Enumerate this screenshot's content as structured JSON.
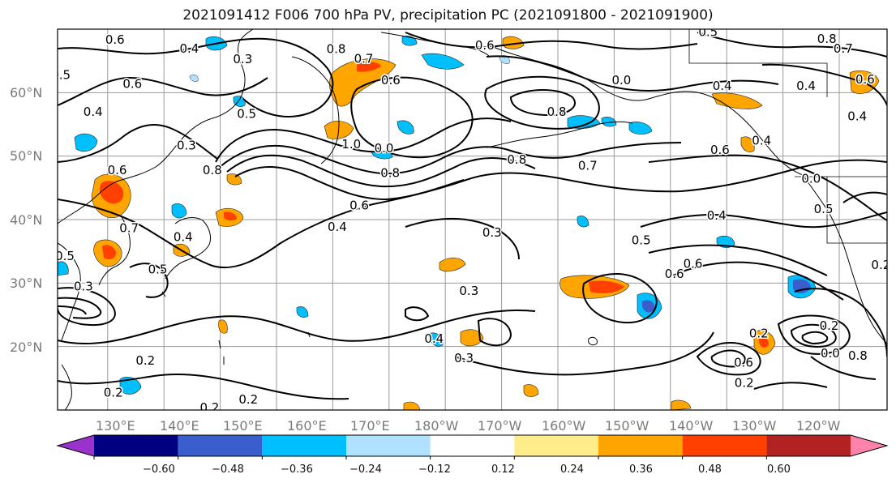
{
  "title": "2021091412 F006 700 hPa PV, precipitation PC (2021091800 - 2021091900)",
  "latitude_labels": [
    "60°N",
    "50°N",
    "40°N",
    "30°N",
    "20°N"
  ],
  "longitude_labels": [
    "130°E",
    "140°E",
    "150°E",
    "160°E",
    "170°E",
    "180°W",
    "170°W",
    "160°W",
    "150°W",
    "140°W",
    "130°W",
    "120°W"
  ],
  "contour_labels": [
    {
      "text": "0.6",
      "lon": 131.3,
      "lat": 68.3
    },
    {
      "text": "0.4",
      "lon": 144.5,
      "lat": 66.9
    },
    {
      "text": "0.3",
      "lon": 154.0,
      "lat": 65.2
    },
    {
      "text": "0.5",
      "lon": 121.7,
      "lat": 62.7
    },
    {
      "text": "0.6",
      "lon": 134.4,
      "lat": 61.3
    },
    {
      "text": "0.4",
      "lon": 127.4,
      "lat": 56.9
    },
    {
      "text": "0.5",
      "lon": 154.7,
      "lat": 56.6
    },
    {
      "text": "0.3",
      "lon": 144.0,
      "lat": 51.6
    },
    {
      "text": "0.8",
      "lon": 170.6,
      "lat": 66.8
    },
    {
      "text": "0.7",
      "lon": 175.5,
      "lat": 65.3
    },
    {
      "text": "0.6",
      "lon": 197.0,
      "lat": 67.4
    },
    {
      "text": "0.5",
      "lon": 236.7,
      "lat": 69.5
    },
    {
      "text": "0.8",
      "lon": 257.8,
      "lat": 68.4
    },
    {
      "text": "0.7",
      "lon": 260.7,
      "lat": 66.9
    },
    {
      "text": "0.6",
      "lon": 180.3,
      "lat": 61.9
    },
    {
      "text": "0.0",
      "lon": 221.3,
      "lat": 61.9
    },
    {
      "text": "0.4",
      "lon": 239.2,
      "lat": 61.0
    },
    {
      "text": "0.4",
      "lon": 254.1,
      "lat": 61.0
    },
    {
      "text": "0.6",
      "lon": 264.6,
      "lat": 62.0
    },
    {
      "text": "0.8",
      "lon": 209.8,
      "lat": 56.9
    },
    {
      "text": "0.4",
      "lon": 263.2,
      "lat": 56.2
    },
    {
      "text": "0.4",
      "lon": 246.2,
      "lat": 52.4
    },
    {
      "text": "1.0",
      "lon": 173.3,
      "lat": 51.8
    },
    {
      "text": "0.0",
      "lon": 179.1,
      "lat": 51.2
    },
    {
      "text": "0.6",
      "lon": 238.8,
      "lat": 50.9
    },
    {
      "text": "0.8",
      "lon": 202.7,
      "lat": 49.4
    },
    {
      "text": "0.7",
      "lon": 215.3,
      "lat": 48.4
    },
    {
      "text": "0.8",
      "lon": 148.6,
      "lat": 47.7
    },
    {
      "text": "0.8",
      "lon": 180.2,
      "lat": 47.3
    },
    {
      "text": "0.6",
      "lon": 131.7,
      "lat": 47.7
    },
    {
      "text": "0.0",
      "lon": 255.0,
      "lat": 46.4
    },
    {
      "text": "0.5",
      "lon": 257.2,
      "lat": 41.6
    },
    {
      "text": "0.6",
      "lon": 174.7,
      "lat": 42.2
    },
    {
      "text": "0.4",
      "lon": 170.8,
      "lat": 38.8
    },
    {
      "text": "0.4",
      "lon": 238.2,
      "lat": 40.6
    },
    {
      "text": "0.3",
      "lon": 198.3,
      "lat": 37.9
    },
    {
      "text": "0.7",
      "lon": 133.8,
      "lat": 38.6
    },
    {
      "text": "0.4",
      "lon": 143.4,
      "lat": 37.2
    },
    {
      "text": "0.5",
      "lon": 224.8,
      "lat": 36.7
    },
    {
      "text": "0.5",
      "lon": 122.4,
      "lat": 34.2
    },
    {
      "text": "0.5",
      "lon": 138.9,
      "lat": 32.1
    },
    {
      "text": "0.6",
      "lon": 230.7,
      "lat": 31.4
    },
    {
      "text": "0.6",
      "lon": 234.0,
      "lat": 33.0
    },
    {
      "text": "0.2",
      "lon": 267.4,
      "lat": 32.8
    },
    {
      "text": "0.3",
      "lon": 125.7,
      "lat": 29.4
    },
    {
      "text": "0.3",
      "lon": 194.2,
      "lat": 28.7
    },
    {
      "text": "0.4",
      "lon": 188.0,
      "lat": 21.2
    },
    {
      "text": "0.2",
      "lon": 245.7,
      "lat": 22.0
    },
    {
      "text": "0.2",
      "lon": 258.2,
      "lat": 23.2
    },
    {
      "text": "0.3",
      "lon": 193.3,
      "lat": 18.1
    },
    {
      "text": "0.0",
      "lon": 258.4,
      "lat": 18.9
    },
    {
      "text": "0.8",
      "lon": 263.3,
      "lat": 18.5
    },
    {
      "text": "0.6",
      "lon": 243.0,
      "lat": 17.4
    },
    {
      "text": "0.2",
      "lon": 136.7,
      "lat": 17.7
    },
    {
      "text": "0.2",
      "lon": 243.1,
      "lat": 14.2
    },
    {
      "text": "0.2",
      "lon": 131.0,
      "lat": 12.7
    },
    {
      "text": "0.2",
      "lon": 155.0,
      "lat": 11.6
    },
    {
      "text": "0.2",
      "lon": 148.1,
      "lat": 10.3
    }
  ],
  "colorbar": {
    "tick_labels": [
      "−0.60",
      "−0.48",
      "−0.36",
      "−0.24",
      "−0.12",
      "0.12",
      "0.24",
      "0.36",
      "0.48",
      "0.60"
    ],
    "colors": [
      "#9933cc",
      "#000080",
      "#3a5fcd",
      "#00bfff",
      "#b0e2ff",
      "#ffffff",
      "#ffec8b",
      "#ffa500",
      "#ff4000",
      "#b22222",
      "#ff82ab"
    ]
  }
}
